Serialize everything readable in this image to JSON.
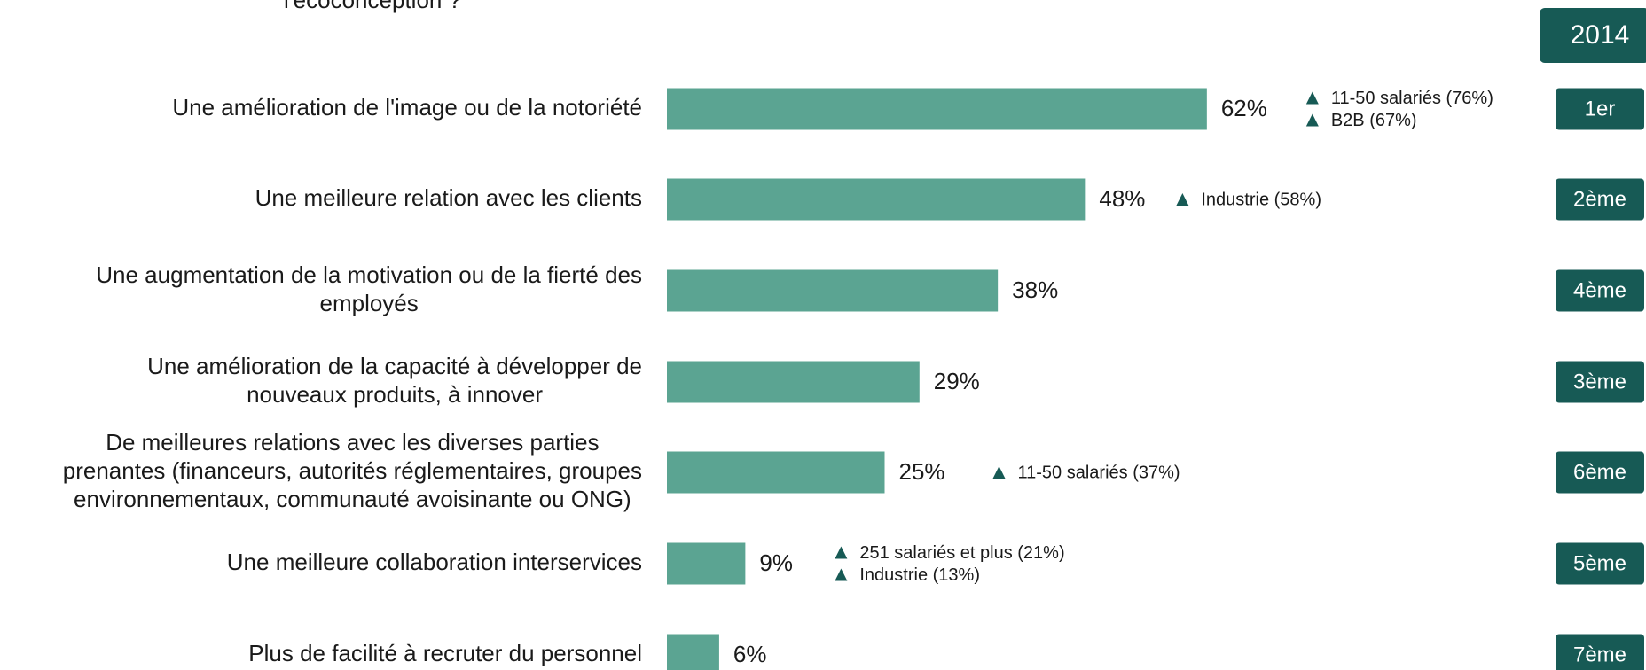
{
  "chart_data": {
    "type": "bar",
    "orientation": "horizontal",
    "title": "l'écoconception ?",
    "year": "2014",
    "categories": [
      [
        "Une amélioration de l'image ou de la notoriété"
      ],
      [
        "Une meilleure relation avec les clients"
      ],
      [
        "Une augmentation de la motivation ou de la fierté des",
        "employés"
      ],
      [
        "Une amélioration de la capacité à développer de",
        "nouveaux produits, à innover"
      ],
      [
        "De meilleures relations avec les diverses parties",
        "prenantes (financeurs, autorités réglementaires, groupes",
        "environnementaux, communauté avoisinante ou ONG)"
      ],
      [
        "Une meilleure collaboration interservices"
      ],
      [
        "Plus de facilité à recruter du personnel"
      ]
    ],
    "values": [
      62,
      48,
      38,
      29,
      25,
      9,
      6
    ],
    "value_labels": [
      "62%",
      "48%",
      "38%",
      "29%",
      "25%",
      "9%",
      "6%"
    ],
    "annotations": [
      [
        "11-50 salariés (76%)",
        "B2B (67%)"
      ],
      [
        "Industrie (58%)"
      ],
      [],
      [],
      [
        "11-50 salariés (37%)"
      ],
      [
        "251 salariés et plus (21%)",
        "Industrie (13%)"
      ],
      []
    ],
    "ranks": [
      "1er",
      "2ème",
      "4ème",
      "3ème",
      "6ème",
      "5ème",
      "7ème"
    ],
    "color": "#5ba492",
    "badge_color": "#175a55",
    "annotation_color": "#175a55",
    "xlim": [
      0,
      100
    ]
  }
}
